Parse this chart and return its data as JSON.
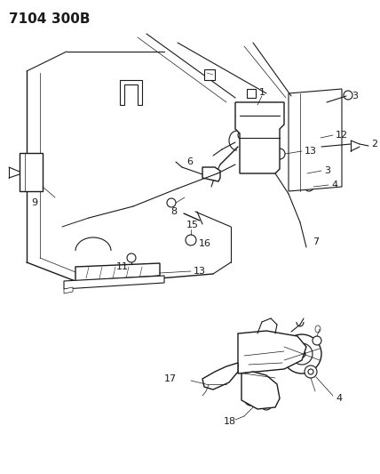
{
  "title_part1": "7104",
  "title_part2": "300B",
  "bg_color": "#ffffff",
  "line_color": "#1a1a1a",
  "title_fontsize": 11,
  "label_fontsize": 7.5,
  "fig_width": 4.28,
  "fig_height": 5.33,
  "dpi": 100
}
